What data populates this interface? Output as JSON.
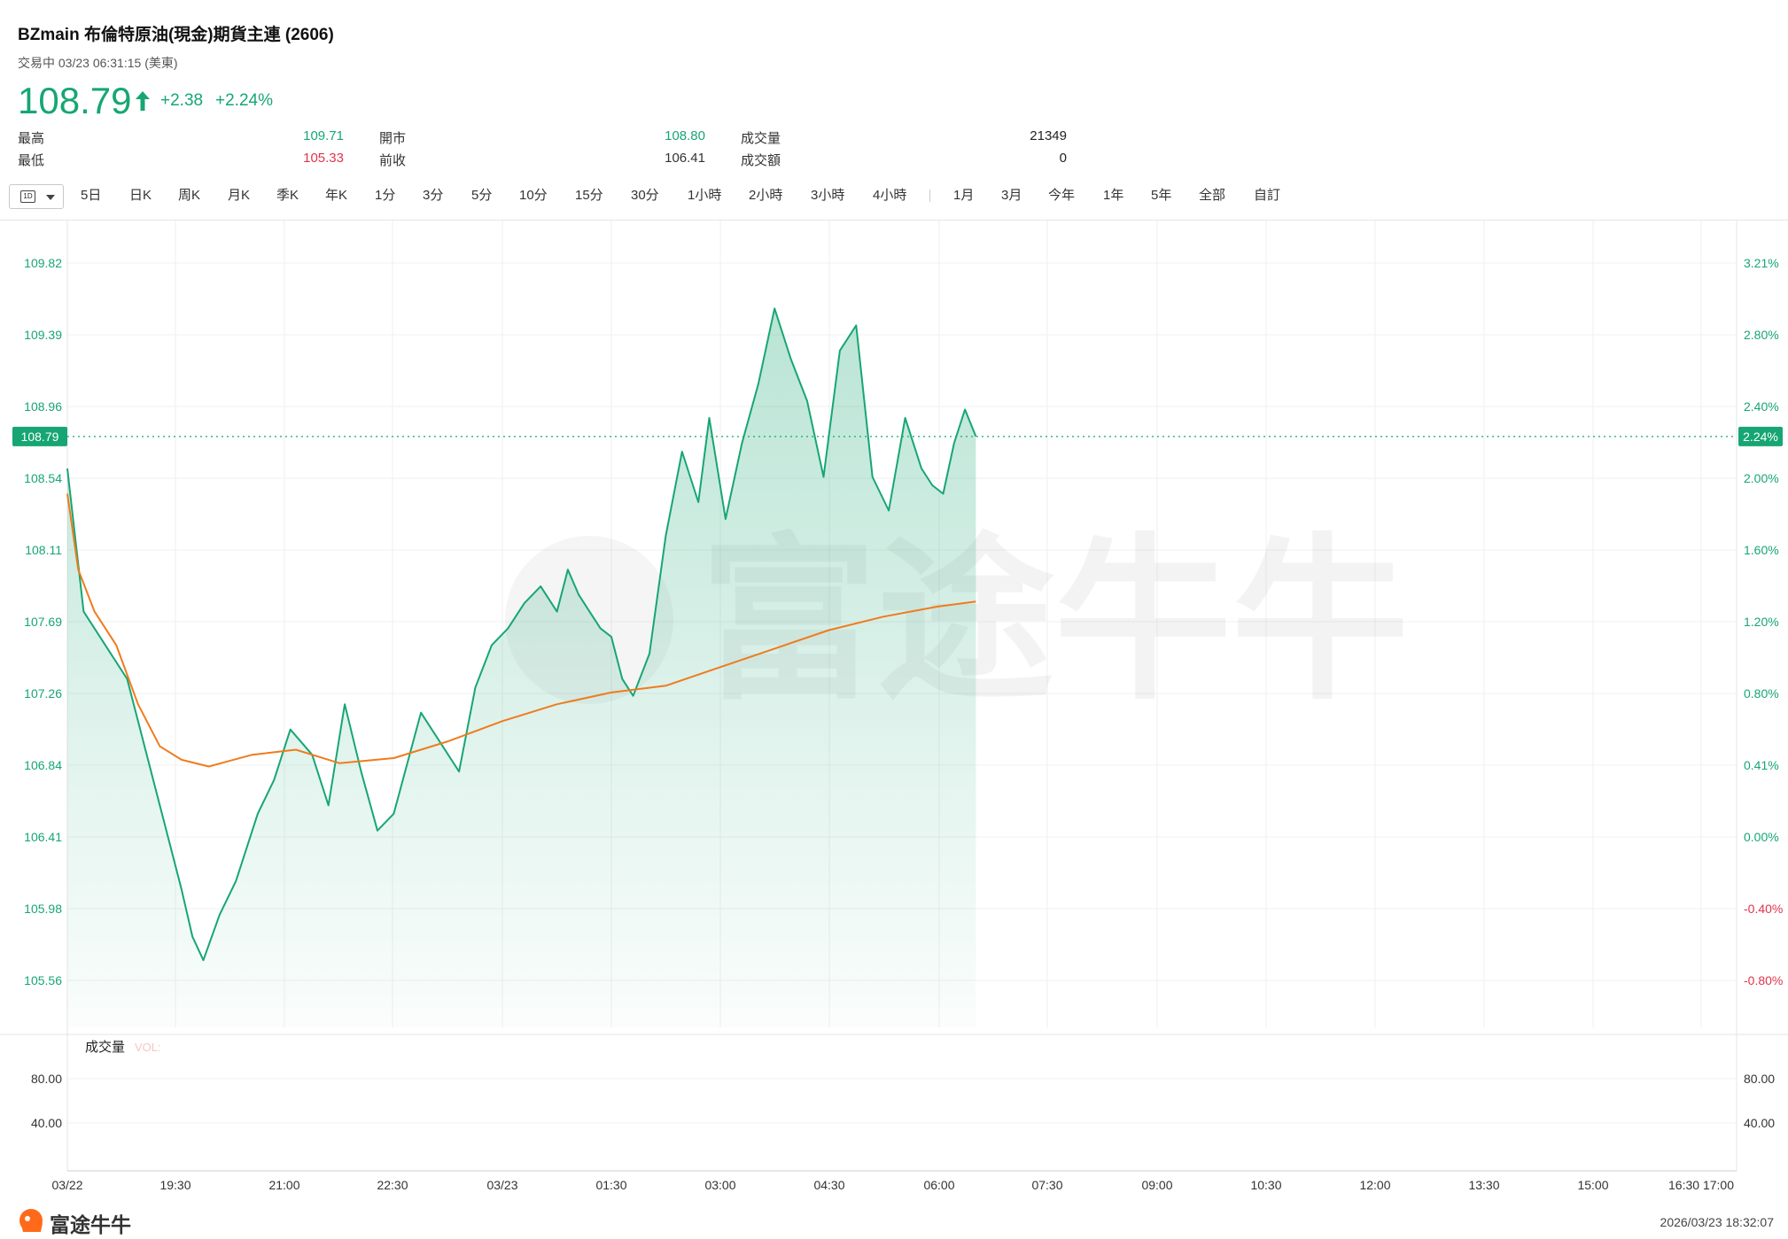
{
  "header": {
    "title": "BZmain  布倫特原油(現金)期貨主連 (2606)",
    "status": "交易中 03/23 06:31:15 (美東)",
    "price": "108.79",
    "change": "+2.38",
    "change_pct": "+2.24%"
  },
  "stats": [
    {
      "label": "最高",
      "value": "109.71",
      "color": "#17a673"
    },
    {
      "label": "最低",
      "value": "105.33",
      "color": "#e0344b"
    },
    {
      "label": "開市",
      "value": "108.80",
      "color": "#17a673"
    },
    {
      "label": "前收",
      "value": "106.41",
      "color": "#333333"
    },
    {
      "label": "成交量",
      "value": "21349",
      "color": "#222222"
    },
    {
      "label": "成交額",
      "value": "0",
      "color": "#222222"
    }
  ],
  "timeframes": {
    "selected_icon": "1D",
    "items": [
      "5日",
      "日K",
      "周K",
      "月K",
      "季K",
      "年K",
      "1分",
      "3分",
      "5分",
      "10分",
      "15分",
      "30分",
      "1小時",
      "2小時",
      "3小時",
      "4小時",
      "1月",
      "3月",
      "今年",
      "1年",
      "5年",
      "全部",
      "自訂"
    ]
  },
  "chart_data": {
    "type": "line",
    "x_tick_labels": [
      "03/22",
      "19:30",
      "21:00",
      "22:30",
      "03/23",
      "01:30",
      "03:00",
      "04:30",
      "06:00",
      "07:30",
      "09:00",
      "10:30",
      "12:00",
      "13:30",
      "15:00",
      "16:30 17:00"
    ],
    "y_tick_labels_left": [
      "109.82",
      "109.39",
      "108.96",
      "108.54",
      "108.11",
      "107.69",
      "107.26",
      "106.84",
      "106.41",
      "105.98",
      "105.56"
    ],
    "y_tick_labels_right": [
      "3.21%",
      "2.80%",
      "2.40%",
      "2.00%",
      "1.60%",
      "1.20%",
      "0.80%",
      "0.41%",
      "0.00%",
      "-0.40%",
      "-0.80%"
    ],
    "ylim": [
      105.56,
      109.82
    ],
    "current_price_label": "108.79",
    "current_pct_label": "2.24%",
    "previous_close": 106.41,
    "series": [
      {
        "color": "#17a673",
        "x": [
          0,
          0.15,
          0.3,
          0.55,
          1.05,
          1.15,
          1.25,
          1.4,
          1.55,
          1.75,
          1.9,
          2.05,
          2.25,
          2.4,
          2.55,
          2.7,
          2.85,
          3.0,
          3.25,
          3.45,
          3.6,
          3.75,
          3.9,
          4.05,
          4.2,
          4.35,
          4.5,
          4.6,
          4.7,
          4.8,
          4.9,
          5.0,
          5.1,
          5.2,
          5.35,
          5.5,
          5.65,
          5.8,
          5.9,
          6.05,
          6.2,
          6.35,
          6.5,
          6.65,
          6.8,
          6.95,
          7.1,
          7.25,
          7.4,
          7.55,
          7.7,
          7.85,
          7.95,
          8.05,
          8.15,
          8.25,
          8.35
        ],
        "values": [
          108.6,
          107.75,
          107.6,
          107.35,
          106.1,
          105.82,
          105.68,
          105.95,
          106.15,
          106.55,
          106.75,
          107.05,
          106.9,
          106.6,
          107.2,
          106.8,
          106.45,
          106.55,
          107.15,
          106.95,
          106.8,
          107.3,
          107.55,
          107.65,
          107.8,
          107.9,
          107.75,
          108.0,
          107.85,
          107.75,
          107.65,
          107.6,
          107.35,
          107.25,
          107.5,
          108.2,
          108.7,
          108.4,
          108.9,
          108.3,
          108.75,
          109.1,
          109.55,
          109.25,
          109.0,
          108.55,
          109.3,
          109.45,
          108.55,
          108.35,
          108.9,
          108.6,
          108.5,
          108.45,
          108.75,
          108.95,
          108.79
        ]
      },
      {
        "color": "#f07b1d",
        "x": [
          0,
          0.1,
          0.25,
          0.45,
          0.65,
          0.85,
          1.05,
          1.3,
          1.7,
          2.1,
          2.5,
          3.0,
          3.5,
          4.0,
          4.5,
          5.0,
          5.5,
          6.0,
          6.5,
          7.0,
          7.5,
          8.0,
          8.35
        ],
        "values": [
          108.45,
          108.0,
          107.75,
          107.55,
          107.2,
          106.95,
          106.87,
          106.83,
          106.9,
          106.93,
          106.85,
          106.88,
          106.98,
          107.1,
          107.2,
          107.27,
          107.31,
          107.42,
          107.53,
          107.64,
          107.72,
          107.78,
          107.81
        ]
      }
    ],
    "volume": {
      "label": "成交量",
      "legend": "VOL:",
      "y_tick_labels": [
        "80.00",
        "40.00"
      ]
    }
  },
  "watermark_text": "富途牛牛",
  "footer": {
    "logo_text": "富途牛牛",
    "timestamp": "2026/03/23 18:32:07"
  }
}
